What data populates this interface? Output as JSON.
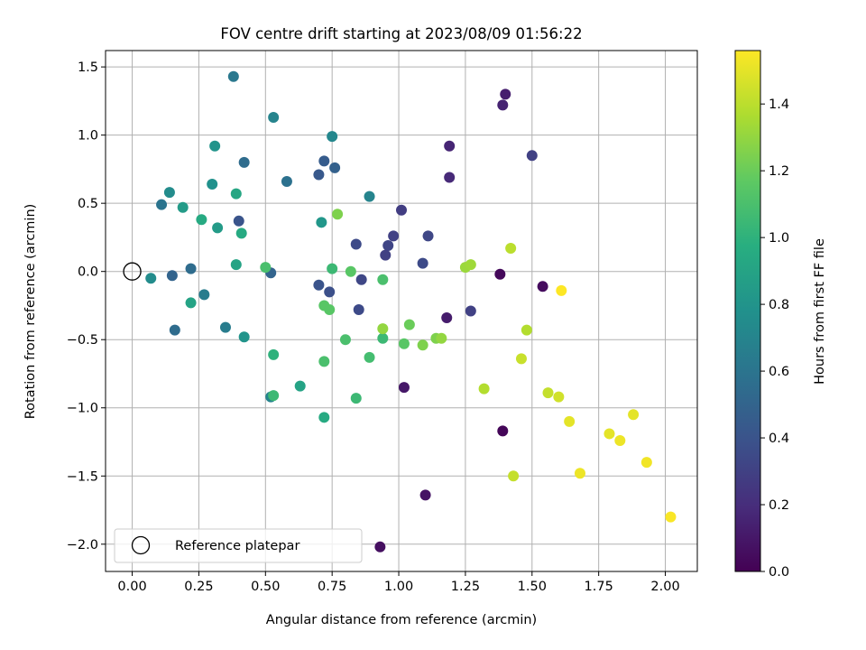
{
  "chart_data": {
    "type": "scatter",
    "title": "FOV centre drift starting at 2023/08/09 01:56:22",
    "xlabel": "Angular distance from reference (arcmin)",
    "ylabel": "Rotation from reference (arcmin)",
    "xlim": [
      -0.1,
      2.12
    ],
    "ylim": [
      -2.2,
      1.62
    ],
    "xticks": [
      0.0,
      0.25,
      0.5,
      0.75,
      1.0,
      1.25,
      1.5,
      1.75,
      2.0
    ],
    "xtick_labels": [
      "0.00",
      "0.25",
      "0.50",
      "0.75",
      "1.00",
      "1.25",
      "1.50",
      "1.75",
      "2.00"
    ],
    "yticks": [
      -2.0,
      -1.5,
      -1.0,
      -0.5,
      0.0,
      0.5,
      1.0,
      1.5
    ],
    "ytick_labels": [
      "−2.0",
      "−1.5",
      "−1.0",
      "−0.5",
      "0.0",
      "0.5",
      "1.0",
      "1.5"
    ],
    "grid": true,
    "colormap": "viridis",
    "colorbar": {
      "label": "Hours from first FF file",
      "range": [
        0.0,
        1.56
      ],
      "ticks": [
        0.0,
        0.2,
        0.4,
        0.6,
        0.8,
        1.0,
        1.2,
        1.4
      ],
      "tick_labels": [
        "0.0",
        "0.2",
        "0.4",
        "0.6",
        "0.8",
        "1.0",
        "1.2",
        "1.4"
      ]
    },
    "legend": {
      "location": "lower-left",
      "entries": [
        "Reference platepar"
      ]
    },
    "reference_point": {
      "x": 0.0,
      "y": 0.0
    },
    "points": [
      {
        "x": 1.38,
        "y": -0.02,
        "c": 0.03
      },
      {
        "x": 1.39,
        "y": -1.17,
        "c": 0.02
      },
      {
        "x": 1.54,
        "y": -0.11,
        "c": 0.05
      },
      {
        "x": 1.1,
        "y": -1.64,
        "c": 0.08
      },
      {
        "x": 0.93,
        "y": -2.02,
        "c": 0.06
      },
      {
        "x": 1.02,
        "y": -0.85,
        "c": 0.1
      },
      {
        "x": 1.18,
        "y": -0.34,
        "c": 0.12
      },
      {
        "x": 1.4,
        "y": 1.3,
        "c": 0.13
      },
      {
        "x": 1.39,
        "y": 1.22,
        "c": 0.15
      },
      {
        "x": 1.19,
        "y": 0.92,
        "c": 0.16
      },
      {
        "x": 1.19,
        "y": 0.69,
        "c": 0.18
      },
      {
        "x": 1.5,
        "y": 0.85,
        "c": 0.3
      },
      {
        "x": 1.27,
        "y": -0.29,
        "c": 0.3
      },
      {
        "x": 1.01,
        "y": 0.45,
        "c": 0.28
      },
      {
        "x": 0.98,
        "y": 0.26,
        "c": 0.3
      },
      {
        "x": 0.96,
        "y": 0.19,
        "c": 0.32
      },
      {
        "x": 0.95,
        "y": 0.12,
        "c": 0.3
      },
      {
        "x": 1.11,
        "y": 0.26,
        "c": 0.33
      },
      {
        "x": 1.09,
        "y": 0.06,
        "c": 0.35
      },
      {
        "x": 0.84,
        "y": 0.2,
        "c": 0.35
      },
      {
        "x": 0.86,
        "y": -0.06,
        "c": 0.33
      },
      {
        "x": 0.85,
        "y": -0.28,
        "c": 0.35
      },
      {
        "x": 0.74,
        "y": -0.15,
        "c": 0.38
      },
      {
        "x": 0.7,
        "y": -0.1,
        "c": 0.4
      },
      {
        "x": 0.7,
        "y": 0.71,
        "c": 0.43
      },
      {
        "x": 0.72,
        "y": 0.81,
        "c": 0.45
      },
      {
        "x": 0.76,
        "y": 0.76,
        "c": 0.48
      },
      {
        "x": 0.42,
        "y": 0.8,
        "c": 0.55
      },
      {
        "x": 0.4,
        "y": 0.37,
        "c": 0.4
      },
      {
        "x": 0.38,
        "y": 1.43,
        "c": 0.62
      },
      {
        "x": 0.53,
        "y": 1.13,
        "c": 0.7
      },
      {
        "x": 0.75,
        "y": 0.99,
        "c": 0.72
      },
      {
        "x": 0.58,
        "y": 0.66,
        "c": 0.58
      },
      {
        "x": 0.52,
        "y": -0.01,
        "c": 0.5
      },
      {
        "x": 0.89,
        "y": 0.55,
        "c": 0.7
      },
      {
        "x": 0.71,
        "y": 0.36,
        "c": 0.82
      },
      {
        "x": 0.31,
        "y": 0.92,
        "c": 0.8
      },
      {
        "x": 0.3,
        "y": 0.64,
        "c": 0.78
      },
      {
        "x": 0.14,
        "y": 0.58,
        "c": 0.75
      },
      {
        "x": 0.11,
        "y": 0.49,
        "c": 0.6
      },
      {
        "x": 0.19,
        "y": 0.47,
        "c": 0.85
      },
      {
        "x": 0.26,
        "y": 0.38,
        "c": 0.95
      },
      {
        "x": 0.32,
        "y": 0.32,
        "c": 0.85
      },
      {
        "x": 0.39,
        "y": 0.57,
        "c": 0.92
      },
      {
        "x": 0.41,
        "y": 0.28,
        "c": 0.95
      },
      {
        "x": 0.39,
        "y": 0.05,
        "c": 0.9
      },
      {
        "x": 0.22,
        "y": 0.02,
        "c": 0.55
      },
      {
        "x": 0.15,
        "y": -0.03,
        "c": 0.5
      },
      {
        "x": 0.07,
        "y": -0.05,
        "c": 0.75
      },
      {
        "x": 0.27,
        "y": -0.17,
        "c": 0.65
      },
      {
        "x": 0.22,
        "y": -0.23,
        "c": 0.9
      },
      {
        "x": 0.16,
        "y": -0.43,
        "c": 0.55
      },
      {
        "x": 0.35,
        "y": -0.41,
        "c": 0.65
      },
      {
        "x": 0.42,
        "y": -0.48,
        "c": 0.8
      },
      {
        "x": 0.53,
        "y": -0.61,
        "c": 1.0
      },
      {
        "x": 0.63,
        "y": -0.84,
        "c": 0.9
      },
      {
        "x": 0.52,
        "y": -0.92,
        "c": 0.7
      },
      {
        "x": 0.53,
        "y": -0.91,
        "c": 1.05
      },
      {
        "x": 0.72,
        "y": -1.07,
        "c": 0.95
      },
      {
        "x": 0.5,
        "y": 0.03,
        "c": 1.1
      },
      {
        "x": 0.72,
        "y": -0.25,
        "c": 1.15
      },
      {
        "x": 0.74,
        "y": -0.28,
        "c": 1.15
      },
      {
        "x": 0.75,
        "y": 0.02,
        "c": 1.05
      },
      {
        "x": 0.82,
        "y": 0.0,
        "c": 1.15
      },
      {
        "x": 0.94,
        "y": -0.06,
        "c": 1.1
      },
      {
        "x": 0.8,
        "y": -0.5,
        "c": 1.1
      },
      {
        "x": 0.72,
        "y": -0.66,
        "c": 1.1
      },
      {
        "x": 0.89,
        "y": -0.63,
        "c": 1.08
      },
      {
        "x": 0.84,
        "y": -0.93,
        "c": 1.05
      },
      {
        "x": 0.94,
        "y": -0.49,
        "c": 1.05
      },
      {
        "x": 0.94,
        "y": -0.42,
        "c": 1.3
      },
      {
        "x": 0.77,
        "y": 0.42,
        "c": 1.25
      },
      {
        "x": 1.02,
        "y": -0.53,
        "c": 1.15
      },
      {
        "x": 1.04,
        "y": -0.39,
        "c": 1.2
      },
      {
        "x": 1.09,
        "y": -0.54,
        "c": 1.25
      },
      {
        "x": 1.14,
        "y": -0.49,
        "c": 1.25
      },
      {
        "x": 1.16,
        "y": -0.49,
        "c": 1.3
      },
      {
        "x": 1.25,
        "y": 0.03,
        "c": 1.32
      },
      {
        "x": 1.27,
        "y": 0.05,
        "c": 1.33
      },
      {
        "x": 1.32,
        "y": -0.86,
        "c": 1.38
      },
      {
        "x": 1.42,
        "y": 0.17,
        "c": 1.4
      },
      {
        "x": 1.43,
        "y": -1.5,
        "c": 1.42
      },
      {
        "x": 1.46,
        "y": -0.64,
        "c": 1.43
      },
      {
        "x": 1.48,
        "y": -0.43,
        "c": 1.38
      },
      {
        "x": 1.56,
        "y": -0.89,
        "c": 1.42
      },
      {
        "x": 1.6,
        "y": -0.92,
        "c": 1.45
      },
      {
        "x": 1.61,
        "y": -0.14,
        "c": 1.56
      },
      {
        "x": 1.64,
        "y": -1.1,
        "c": 1.5
      },
      {
        "x": 1.68,
        "y": -1.48,
        "c": 1.52
      },
      {
        "x": 1.79,
        "y": -1.19,
        "c": 1.5
      },
      {
        "x": 1.83,
        "y": -1.24,
        "c": 1.52
      },
      {
        "x": 1.88,
        "y": -1.05,
        "c": 1.5
      },
      {
        "x": 1.93,
        "y": -1.4,
        "c": 1.53
      },
      {
        "x": 2.02,
        "y": -1.8,
        "c": 1.55
      }
    ]
  }
}
